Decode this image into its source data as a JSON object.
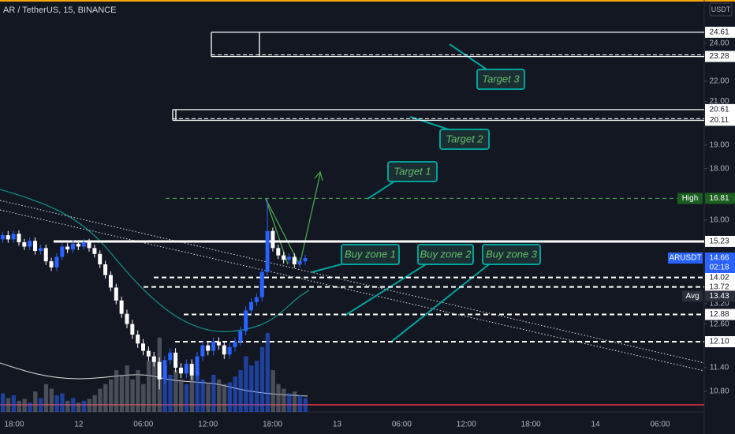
{
  "header": {
    "symbol": "AR / TetherUS, 15, BINANCE",
    "currency": "USDT"
  },
  "chart_data": {
    "type": "candlestick",
    "log_scale": true,
    "ylim": [
      10.3,
      26.5
    ],
    "yticks": [
      {
        "value": 24,
        "label": "24.00"
      },
      {
        "value": 22,
        "label": "22.00"
      },
      {
        "value": 21,
        "label": "21.00"
      },
      {
        "value": 19,
        "label": "19.00"
      },
      {
        "value": 18,
        "label": "18.00"
      },
      {
        "value": 16,
        "label": "16.00"
      },
      {
        "value": 13.2,
        "label": "13.20"
      },
      {
        "value": 12.6,
        "label": "12.60"
      },
      {
        "value": 11.4,
        "label": "11.40"
      },
      {
        "value": 10.8,
        "label": "10.80"
      }
    ],
    "xtick_labels": [
      "18:00",
      "12",
      "06:00",
      "12:00",
      "18:00",
      "13",
      "06:00",
      "12:00",
      "18:00",
      "14",
      "06:00"
    ],
    "up_color": "#2962ff",
    "down_color": "#ffffff",
    "open": [
      15.3,
      15.45,
      15.3,
      15.5,
      15.2,
      15.05,
      15.25,
      14.9,
      15.0,
      14.55,
      14.35,
      14.7,
      15.05,
      14.95,
      15.15,
      15.05,
      15.2,
      15.0,
      14.8,
      14.45,
      14.1,
      13.7,
      13.3,
      12.9,
      12.6,
      12.3,
      12.05,
      11.85,
      11.7,
      11.55,
      11.1,
      11.6,
      11.8,
      11.4,
      11.25,
      11.5,
      11.2,
      11.7,
      12.0,
      11.85,
      12.1,
      12.0,
      11.75,
      11.95,
      12.1,
      12.4,
      13.0,
      13.25,
      13.4,
      14.2,
      15.6,
      15.0,
      14.75,
      14.6,
      14.7,
      14.45,
      14.55
    ],
    "high": [
      15.57,
      15.6,
      15.62,
      15.62,
      15.32,
      15.37,
      15.37,
      15.12,
      15.12,
      14.67,
      14.82,
      15.17,
      15.17,
      15.27,
      15.27,
      15.32,
      15.32,
      15.12,
      14.92,
      14.57,
      14.22,
      13.82,
      13.42,
      13.02,
      12.72,
      12.42,
      12.17,
      11.97,
      11.82,
      11.67,
      11.72,
      11.92,
      11.92,
      11.52,
      11.62,
      11.62,
      11.82,
      12.12,
      12.12,
      12.22,
      12.22,
      12.12,
      12.07,
      12.22,
      12.52,
      13.12,
      13.37,
      13.52,
      14.32,
      16.81,
      15.72,
      15.12,
      14.87,
      14.82,
      14.82,
      14.67,
      14.78
    ],
    "low": [
      15.18,
      15.18,
      15.18,
      15.08,
      14.93,
      14.93,
      14.78,
      14.78,
      14.43,
      14.23,
      14.23,
      14.58,
      14.83,
      14.83,
      14.93,
      14.93,
      14.88,
      14.68,
      14.33,
      13.98,
      13.58,
      13.18,
      12.78,
      12.48,
      12.18,
      11.93,
      11.73,
      11.58,
      11.43,
      10.85,
      10.98,
      11.48,
      11.28,
      11.13,
      11.13,
      11.08,
      11.08,
      11.58,
      11.73,
      11.73,
      11.88,
      11.63,
      11.63,
      11.83,
      11.98,
      12.28,
      12.88,
      13.13,
      13.28,
      14.08,
      14.88,
      14.63,
      14.48,
      14.48,
      14.33,
      14.33,
      14.43
    ],
    "close": [
      15.45,
      15.3,
      15.5,
      15.2,
      15.05,
      15.25,
      14.9,
      15.0,
      14.55,
      14.35,
      14.7,
      15.05,
      14.95,
      15.15,
      15.05,
      15.2,
      15.0,
      14.8,
      14.45,
      14.1,
      13.7,
      13.3,
      12.9,
      12.6,
      12.3,
      12.05,
      11.85,
      11.7,
      11.55,
      11.1,
      11.6,
      11.8,
      11.4,
      11.25,
      11.5,
      11.2,
      11.7,
      12.0,
      11.85,
      12.1,
      12.0,
      11.75,
      11.95,
      12.1,
      12.4,
      13.0,
      13.25,
      13.4,
      14.2,
      15.6,
      15.0,
      14.75,
      14.6,
      14.7,
      14.45,
      14.55,
      14.66
    ],
    "volume": [
      20,
      15,
      18,
      12,
      14,
      10,
      22,
      15,
      30,
      25,
      18,
      20,
      12,
      15,
      10,
      12,
      14,
      18,
      25,
      30,
      35,
      45,
      40,
      50,
      35,
      45,
      30,
      55,
      60,
      80,
      50,
      40,
      45,
      35,
      30,
      40,
      45,
      35,
      30,
      40,
      35,
      30,
      32,
      38,
      45,
      60,
      50,
      55,
      70,
      85,
      45,
      30,
      25,
      20,
      22,
      18,
      15
    ],
    "levels": [
      {
        "value": 24.61,
        "label": "24.61",
        "style": "box-top"
      },
      {
        "value": 23.28,
        "label": "23.28",
        "style": "box-bottom"
      },
      {
        "value": 20.61,
        "label": "20.61",
        "style": "box-top"
      },
      {
        "value": 20.11,
        "label": "20.11",
        "style": "box-bottom"
      },
      {
        "value": 15.23,
        "label": "15.23",
        "style": "solid"
      },
      {
        "value": 14.02,
        "label": "14.02",
        "style": "dashed"
      },
      {
        "value": 13.72,
        "label": "13.72",
        "style": "dashed"
      },
      {
        "value": 12.88,
        "label": "12.88",
        "style": "dashed"
      },
      {
        "value": 12.1,
        "label": "12.10",
        "style": "dashed"
      }
    ],
    "tags": [
      {
        "name": "High",
        "value": 16.81,
        "label": "16.81",
        "color": "#1b5e20"
      },
      {
        "name": "ARUSDT",
        "value": 14.66,
        "label": "14.66",
        "countdown": "02:18",
        "color": "#2962ff"
      },
      {
        "name": "Avg",
        "value": 13.43,
        "label": "13.43",
        "color": "#2a2e39"
      }
    ],
    "annotations": [
      "Target 3",
      "Target 2",
      "Target 1",
      "Buy zone 1",
      "Buy zone 2",
      "Buy zone 3"
    ]
  }
}
